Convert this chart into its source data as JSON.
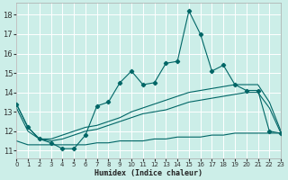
{
  "xlabel": "Humidex (Indice chaleur)",
  "background_color": "#cceee8",
  "grid_color": "#ffffff",
  "line_color": "#006666",
  "xlim": [
    0,
    23
  ],
  "ylim": [
    10.6,
    18.6
  ],
  "yticks": [
    11,
    12,
    13,
    14,
    15,
    16,
    17,
    18
  ],
  "xticks": [
    0,
    1,
    2,
    3,
    4,
    5,
    6,
    7,
    8,
    9,
    10,
    11,
    12,
    13,
    14,
    15,
    16,
    17,
    18,
    19,
    20,
    21,
    22,
    23
  ],
  "line1_x": [
    0,
    1,
    2,
    3,
    4,
    5,
    6,
    7,
    8,
    9,
    10,
    11,
    12,
    13,
    14,
    15,
    16,
    17,
    18,
    19,
    20,
    21,
    22,
    23
  ],
  "line1_y": [
    13.4,
    12.2,
    11.6,
    11.4,
    11.1,
    11.1,
    11.8,
    13.3,
    13.5,
    14.5,
    15.1,
    14.4,
    14.5,
    15.5,
    15.6,
    18.2,
    17.0,
    15.1,
    15.4,
    14.4,
    14.1,
    14.1,
    12.0,
    11.9
  ],
  "line2_x": [
    0,
    1,
    2,
    3,
    4,
    5,
    6,
    7,
    8,
    9,
    10,
    11,
    12,
    13,
    14,
    15,
    16,
    17,
    18,
    19,
    20,
    21,
    22,
    23
  ],
  "line2_y": [
    13.4,
    12.2,
    11.6,
    11.6,
    11.8,
    12.0,
    12.2,
    12.3,
    12.5,
    12.7,
    13.0,
    13.2,
    13.4,
    13.6,
    13.8,
    14.0,
    14.1,
    14.2,
    14.3,
    14.4,
    14.4,
    14.4,
    13.5,
    12.0
  ],
  "line3_x": [
    0,
    1,
    2,
    3,
    4,
    5,
    6,
    7,
    8,
    9,
    10,
    11,
    12,
    13,
    14,
    15,
    16,
    17,
    18,
    19,
    20,
    21,
    22,
    23
  ],
  "line3_y": [
    13.2,
    12.0,
    11.6,
    11.5,
    11.6,
    11.8,
    12.0,
    12.1,
    12.3,
    12.5,
    12.7,
    12.9,
    13.0,
    13.1,
    13.3,
    13.5,
    13.6,
    13.7,
    13.8,
    13.9,
    14.0,
    14.0,
    13.2,
    11.9
  ],
  "line4_x": [
    0,
    1,
    2,
    3,
    4,
    5,
    6,
    7,
    8,
    9,
    10,
    11,
    12,
    13,
    14,
    15,
    16,
    17,
    18,
    19,
    20,
    21,
    22,
    23
  ],
  "line4_y": [
    11.5,
    11.3,
    11.3,
    11.3,
    11.3,
    11.3,
    11.3,
    11.4,
    11.4,
    11.5,
    11.5,
    11.5,
    11.6,
    11.6,
    11.7,
    11.7,
    11.7,
    11.8,
    11.8,
    11.9,
    11.9,
    11.9,
    11.9,
    11.9
  ]
}
